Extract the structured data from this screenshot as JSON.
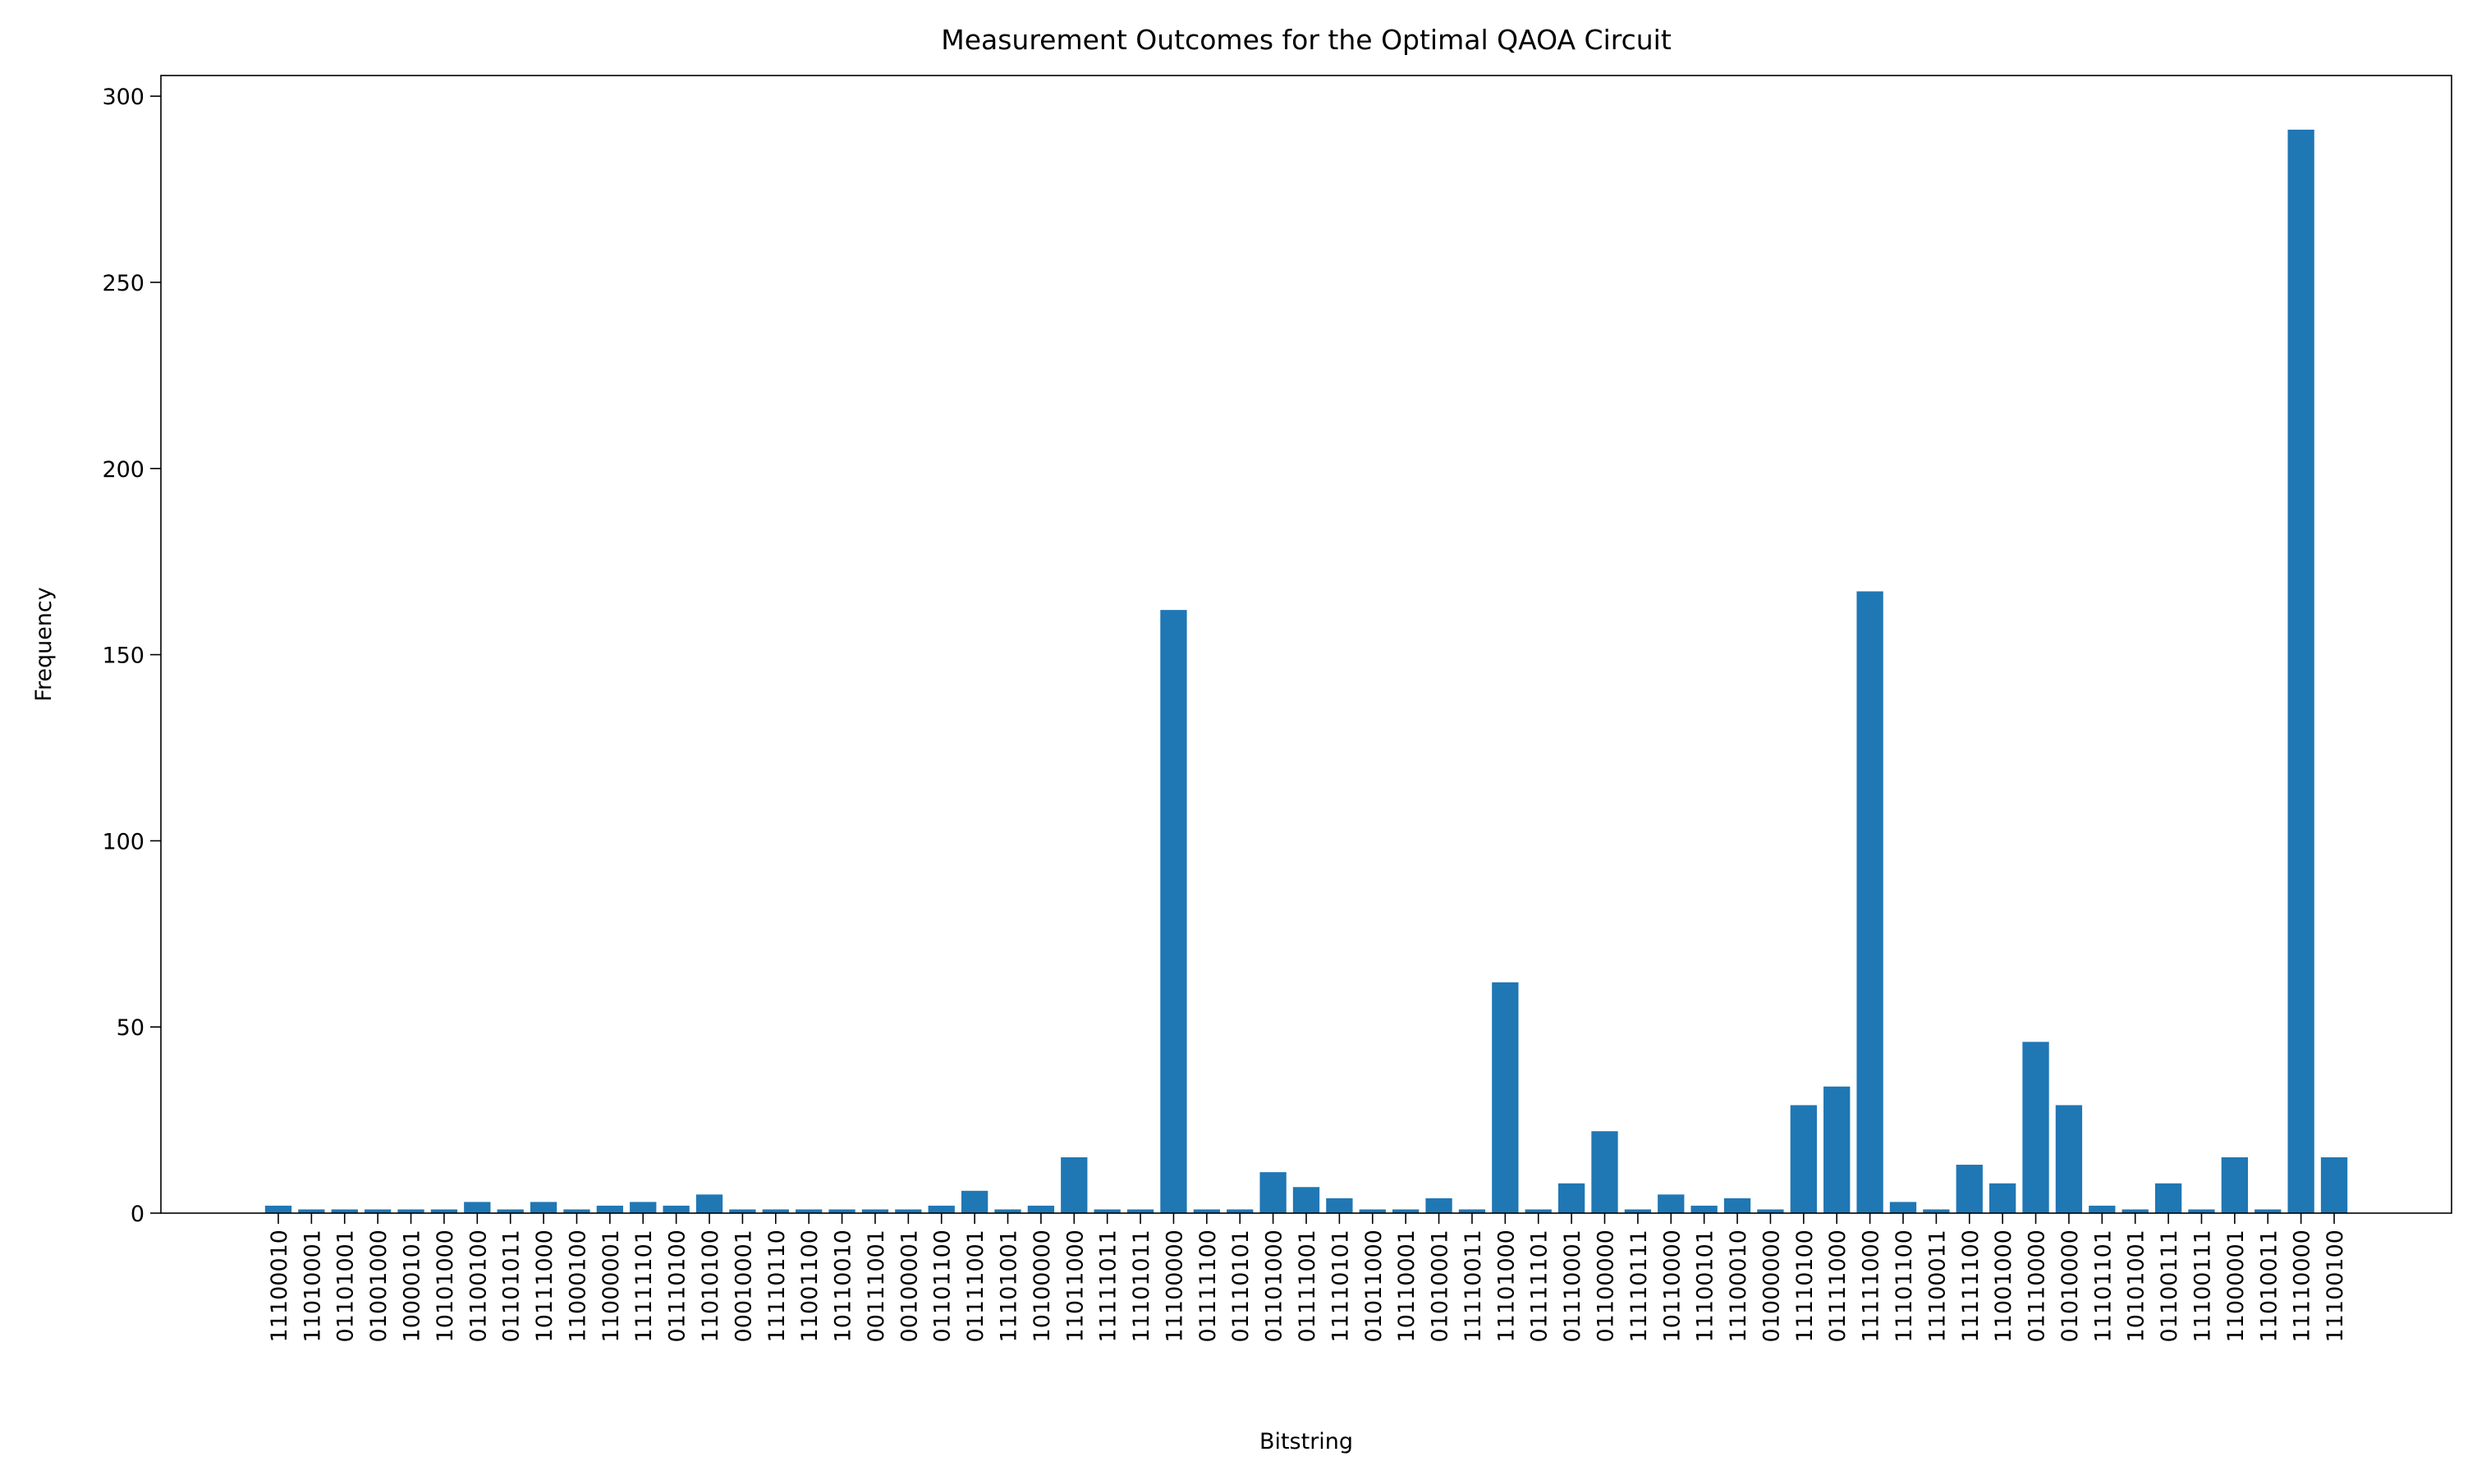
{
  "chart_data": {
    "type": "bar",
    "title": "Measurement Outcomes for the Optimal QAOA Circuit",
    "x_label": "Bitstring",
    "y_label": "Frequency",
    "categories": [
      "11100010",
      "11010001",
      "01101001",
      "01001000",
      "10000101",
      "10101000",
      "01100100",
      "01101011",
      "10111000",
      "11000100",
      "11000001",
      "11111101",
      "01110100",
      "11010100",
      "00010001",
      "11110110",
      "11001100",
      "10110010",
      "00111001",
      "00100001",
      "01101100",
      "01111001",
      "11101001",
      "10100000",
      "11011000",
      "11111011",
      "11101011",
      "11100000",
      "01111100",
      "01110101",
      "01101000",
      "01111001",
      "11110101",
      "01011000",
      "10110001",
      "01010001",
      "11110011",
      "11101000",
      "01111101",
      "01110001",
      "01100000",
      "11110111",
      "10110000",
      "11100101",
      "11100010",
      "01000000",
      "11110100",
      "01111000",
      "11111000",
      "11101100",
      "11100011",
      "11111100",
      "11001000",
      "01110000",
      "01010000",
      "11101101",
      "10101001",
      "01100111",
      "11100111",
      "11000001",
      "11010011",
      "11110000",
      "11100100"
    ],
    "values": [
      2,
      1,
      1,
      1,
      1,
      1,
      3,
      1,
      3,
      1,
      2,
      3,
      2,
      5,
      1,
      1,
      1,
      1,
      1,
      1,
      2,
      6,
      1,
      2,
      15,
      1,
      1,
      162,
      1,
      1,
      11,
      7,
      4,
      1,
      1,
      4,
      1,
      62,
      1,
      8,
      22,
      1,
      5,
      2,
      4,
      1,
      29,
      34,
      167,
      3,
      1,
      13,
      8,
      46,
      29,
      2,
      1,
      8,
      1,
      15,
      1,
      291,
      15
    ],
    "color": "#1f77b4",
    "ylim": [
      0,
      305.55
    ],
    "yticks": [
      0,
      50,
      100,
      150,
      200,
      250,
      300
    ],
    "grid": false
  }
}
